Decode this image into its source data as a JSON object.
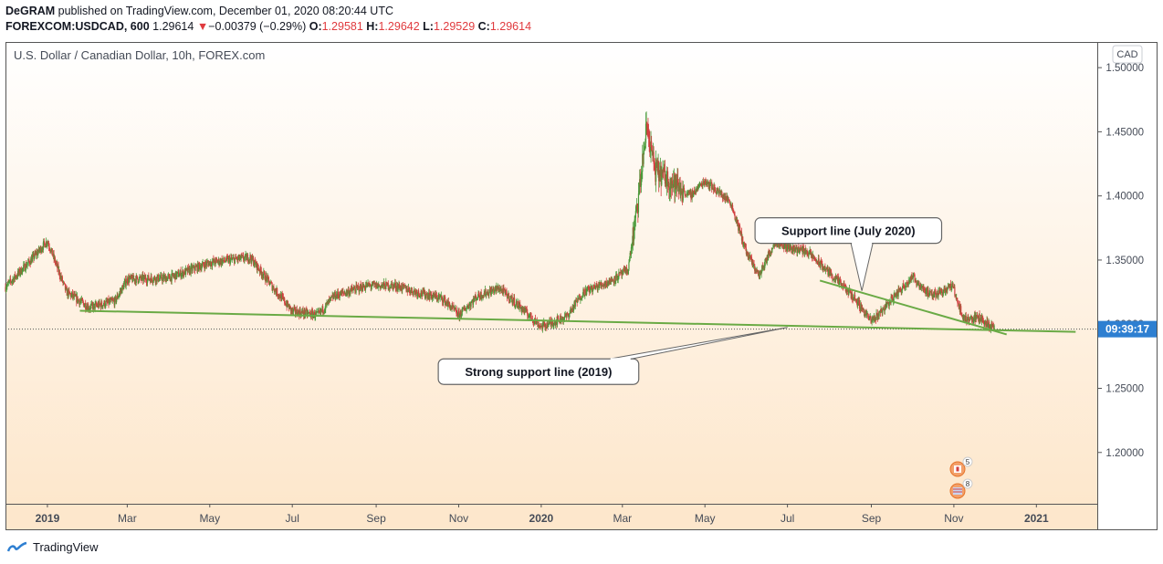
{
  "header": {
    "publisher_line_bold": "DeGRAM",
    "publisher_line_rest": " published on TradingView.com, December 01, 2020 08:20:44 UTC",
    "symbol": "FOREXCOM:USDCAD, 600",
    "last": "1.29614",
    "change_arrow": "▼",
    "change": "−0.00379 (−0.29%)",
    "o_label": "O:",
    "o_value": "1.29581",
    "h_label": "H:",
    "h_value": "1.29642",
    "l_label": "L:",
    "l_value": "1.29529",
    "c_label": "C:",
    "c_value": "1.29614"
  },
  "footer": {
    "brand": "TradingView"
  },
  "colors": {
    "up": "#4a9a3a",
    "down": "#d23f3f",
    "trendline": "#6aaa45",
    "price_tag": "#2e7fd1"
  },
  "chart_data": {
    "type": "candlestick",
    "title": "U.S. Dollar / Canadian Dollar, 10h, FOREX.com",
    "currency_badge": "CAD",
    "ylim": [
      1.16,
      1.52
    ],
    "y_ticks": [
      "1.50000",
      "1.45000",
      "1.40000",
      "1.35000",
      "1.30000",
      "1.25000",
      "1.20000"
    ],
    "y_tick_values": [
      1.5,
      1.45,
      1.4,
      1.35,
      1.3,
      1.25,
      1.2
    ],
    "x_ticks": [
      "2019",
      "Mar",
      "May",
      "Jul",
      "Sep",
      "Nov",
      "2020",
      "Mar",
      "May",
      "Jul",
      "Sep",
      "Nov",
      "2021"
    ],
    "x_tick_dates": [
      "2019-01-01",
      "2019-03-01",
      "2019-05-01",
      "2019-07-01",
      "2019-09-01",
      "2019-11-01",
      "2020-01-01",
      "2020-03-01",
      "2020-05-01",
      "2020-07-01",
      "2020-09-01",
      "2020-11-01",
      "2021-01-01"
    ],
    "x_range": [
      "2018-12-01",
      "2021-02-15"
    ],
    "bold_x_ticks": [
      "2019",
      "2020",
      "2021"
    ],
    "current_price_label": "09:39:17",
    "current_price": 1.29614,
    "price_path": [
      [
        "2018-12-01",
        1.329
      ],
      [
        "2018-12-20",
        1.35
      ],
      [
        "2019-01-01",
        1.365
      ],
      [
        "2019-01-15",
        1.325
      ],
      [
        "2019-02-01",
        1.313
      ],
      [
        "2019-02-20",
        1.318
      ],
      [
        "2019-03-01",
        1.335
      ],
      [
        "2019-04-01",
        1.336
      ],
      [
        "2019-05-01",
        1.348
      ],
      [
        "2019-05-31",
        1.352
      ],
      [
        "2019-06-15",
        1.331
      ],
      [
        "2019-07-01",
        1.31
      ],
      [
        "2019-07-20",
        1.307
      ],
      [
        "2019-08-01",
        1.322
      ],
      [
        "2019-08-25",
        1.33
      ],
      [
        "2019-09-15",
        1.33
      ],
      [
        "2019-10-01",
        1.325
      ],
      [
        "2019-10-20",
        1.32
      ],
      [
        "2019-11-01",
        1.307
      ],
      [
        "2019-11-15",
        1.322
      ],
      [
        "2019-12-01",
        1.328
      ],
      [
        "2019-12-20",
        1.31
      ],
      [
        "2020-01-01",
        1.298
      ],
      [
        "2020-01-20",
        1.306
      ],
      [
        "2020-02-01",
        1.325
      ],
      [
        "2020-02-20",
        1.333
      ],
      [
        "2020-03-05",
        1.342
      ],
      [
        "2020-03-12",
        1.39
      ],
      [
        "2020-03-19",
        1.455
      ],
      [
        "2020-03-25",
        1.42
      ],
      [
        "2020-04-01",
        1.415
      ],
      [
        "2020-04-20",
        1.4
      ],
      [
        "2020-05-01",
        1.412
      ],
      [
        "2020-05-20",
        1.395
      ],
      [
        "2020-06-01",
        1.355
      ],
      [
        "2020-06-10",
        1.338
      ],
      [
        "2020-06-22",
        1.365
      ],
      [
        "2020-07-01",
        1.36
      ],
      [
        "2020-07-15",
        1.357
      ],
      [
        "2020-08-01",
        1.34
      ],
      [
        "2020-08-20",
        1.32
      ],
      [
        "2020-09-01",
        1.302
      ],
      [
        "2020-09-15",
        1.318
      ],
      [
        "2020-10-01",
        1.337
      ],
      [
        "2020-10-15",
        1.322
      ],
      [
        "2020-10-31",
        1.33
      ],
      [
        "2020-11-08",
        1.304
      ],
      [
        "2020-11-20",
        1.305
      ],
      [
        "2020-12-01",
        1.296
      ]
    ],
    "annotations": [
      {
        "label": "Support line (July 2020)",
        "kind": "trendline",
        "from": [
          "2020-07-25",
          1.334
        ],
        "to": [
          "2020-12-10",
          1.292
        ],
        "callout_at": [
          "2020-08-15",
          1.373
        ],
        "pointer_to": [
          "2020-08-25",
          1.326
        ]
      },
      {
        "label": "Strong support line (2019)",
        "kind": "trendline",
        "from": [
          "2019-01-25",
          1.3105
        ],
        "to": [
          "2021-01-30",
          1.294
        ],
        "callout_at": [
          "2019-12-30",
          1.263
        ],
        "pointer_to": [
          "2020-07-01",
          1.2975
        ]
      }
    ]
  }
}
